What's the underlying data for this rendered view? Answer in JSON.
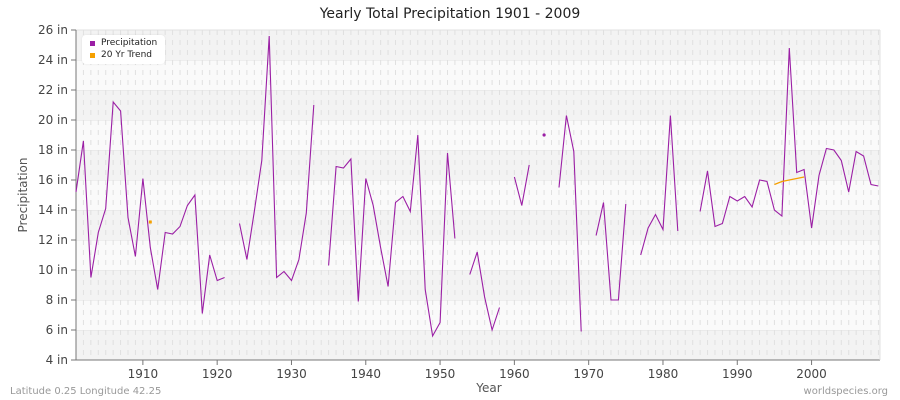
{
  "chart_data": {
    "type": "line",
    "title": "Yearly Total Precipitation 1901 - 2009",
    "xlabel": "Year",
    "ylabel": "Precipitation",
    "ylim": [
      4,
      26
    ],
    "xlim": [
      1901,
      2009
    ],
    "y_ticks": [
      "4 in",
      "6 in",
      "8 in",
      "10 in",
      "12 in",
      "14 in",
      "16 in",
      "18 in",
      "20 in",
      "22 in",
      "24 in",
      "26 in"
    ],
    "x_ticks": [
      "1910",
      "1920",
      "1930",
      "1940",
      "1950",
      "1960",
      "1970",
      "1980",
      "1990",
      "2000"
    ],
    "legend_position": "top-left",
    "grid": true,
    "series": [
      {
        "name": "Precipitation",
        "color": "#9b1fa5",
        "x": [
          1901,
          1902,
          1903,
          1904,
          1905,
          1906,
          1907,
          1908,
          1909,
          1910,
          1911,
          1912,
          1913,
          1914,
          1915,
          1916,
          1917,
          1918,
          1919,
          1920,
          1921,
          1922,
          1923,
          1924,
          1925,
          1926,
          1927,
          1928,
          1929,
          1930,
          1931,
          1932,
          1933,
          1934,
          1935,
          1936,
          1937,
          1938,
          1939,
          1940,
          1941,
          1942,
          1943,
          1944,
          1945,
          1946,
          1947,
          1948,
          1949,
          1950,
          1951,
          1952,
          1953,
          1954,
          1955,
          1956,
          1957,
          1958,
          1959,
          1960,
          1961,
          1962,
          1963,
          1964,
          1965,
          1966,
          1967,
          1968,
          1969,
          1970,
          1971,
          1972,
          1973,
          1974,
          1975,
          1976,
          1977,
          1978,
          1979,
          1980,
          1981,
          1982,
          1983,
          1984,
          1985,
          1986,
          1987,
          1988,
          1989,
          1990,
          1991,
          1992,
          1993,
          1994,
          1995,
          1996,
          1997,
          1998,
          1999,
          2000,
          2001,
          2002,
          2003,
          2004,
          2005,
          2006,
          2007,
          2008,
          2009
        ],
        "values": [
          15.2,
          18.6,
          9.5,
          12.5,
          14.1,
          21.2,
          20.6,
          13.5,
          10.9,
          16.1,
          11.5,
          8.7,
          12.5,
          12.4,
          12.9,
          14.3,
          15.0,
          7.1,
          11.0,
          9.3,
          9.5,
          null,
          13.1,
          10.7,
          13.9,
          17.3,
          25.6,
          9.5,
          9.9,
          9.3,
          10.7,
          13.8,
          21.0,
          null,
          10.3,
          16.9,
          16.8,
          17.4,
          7.9,
          16.1,
          14.3,
          11.5,
          8.9,
          14.5,
          14.9,
          13.9,
          19.0,
          8.7,
          5.6,
          6.5,
          17.8,
          12.1,
          null,
          9.7,
          11.2,
          8.2,
          6.0,
          7.5,
          null,
          16.2,
          14.3,
          17.0,
          null,
          19.0,
          null,
          15.5,
          20.3,
          17.9,
          5.9,
          null,
          12.3,
          14.5,
          8.0,
          8.0,
          14.4,
          null,
          11.0,
          12.8,
          13.7,
          12.7,
          20.3,
          12.6,
          null,
          null,
          13.9,
          16.6,
          12.9,
          13.1,
          14.9,
          14.6,
          14.9,
          14.2,
          16.0,
          15.9,
          14.0,
          13.6,
          24.8,
          16.5,
          16.7,
          12.8,
          16.3,
          18.1,
          18.0,
          17.3,
          15.2,
          17.9,
          17.6,
          15.7,
          15.6
        ]
      },
      {
        "name": "20 Yr Trend",
        "color": "#f5a000",
        "x": [
          1911,
          1995,
          1996,
          1997,
          1998,
          1999
        ],
        "values": [
          13.2,
          15.7,
          15.9,
          16.0,
          16.1,
          16.2
        ],
        "segments": [
          [
            1911
          ],
          [
            1995,
            1996,
            1997,
            1998,
            1999
          ]
        ]
      }
    ]
  },
  "legend": {
    "items": [
      {
        "label": "Precipitation",
        "color": "#9b1fa5"
      },
      {
        "label": "20 Yr Trend",
        "color": "#f5a000"
      }
    ]
  },
  "footer": {
    "left": "Latitude 0.25 Longitude 42.25",
    "right": "worldspecies.org"
  }
}
